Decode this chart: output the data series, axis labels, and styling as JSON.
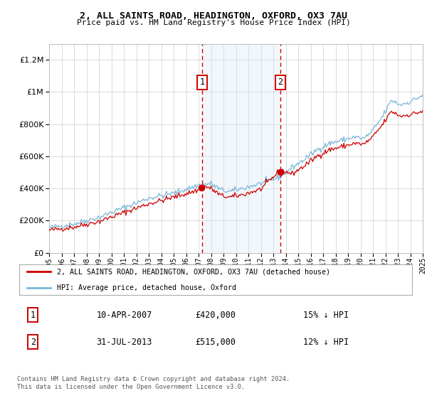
{
  "title1": "2, ALL SAINTS ROAD, HEADINGTON, OXFORD, OX3 7AU",
  "title2": "Price paid vs. HM Land Registry's House Price Index (HPI)",
  "legend_line1": "2, ALL SAINTS ROAD, HEADINGTON, OXFORD, OX3 7AU (detached house)",
  "legend_line2": "HPI: Average price, detached house, Oxford",
  "sale1_date": "10-APR-2007",
  "sale1_price": "£420,000",
  "sale1_hpi": "15% ↓ HPI",
  "sale1_year": 2007.27,
  "sale1_value": 420000,
  "sale2_date": "31-JUL-2013",
  "sale2_price": "£515,000",
  "sale2_hpi": "12% ↓ HPI",
  "sale2_year": 2013.58,
  "sale2_value": 515000,
  "hpi_color": "#7ab8d9",
  "price_color": "#cc0000",
  "shaded_color": "#daeaf5",
  "vline_color": "#cc0000",
  "ylim_min": 0,
  "ylim_max": 1300000,
  "footer": "Contains HM Land Registry data © Crown copyright and database right 2024.\nThis data is licensed under the Open Government Licence v3.0."
}
